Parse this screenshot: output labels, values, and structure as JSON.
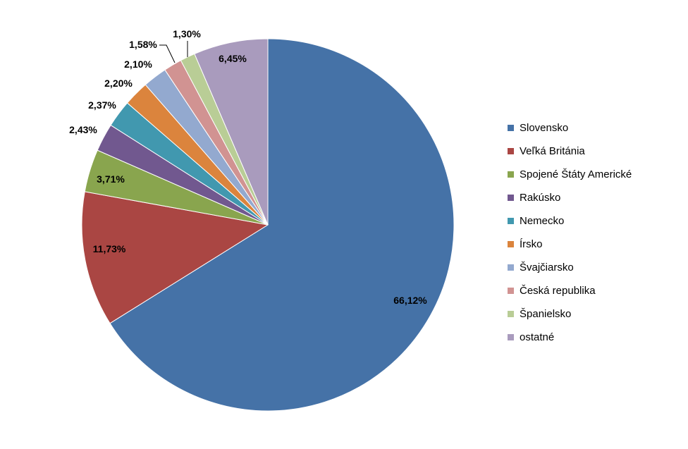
{
  "chart_data": {
    "type": "pie",
    "title": "",
    "legend_position": "right",
    "slices": [
      {
        "label": "Slovensko",
        "value": 66.12,
        "value_label": "66,12%",
        "color": "#4572A7"
      },
      {
        "label": "Veľká Británia",
        "value": 11.73,
        "value_label": "11,73%",
        "color": "#AA4643"
      },
      {
        "label": "Spojené Štáty Americké",
        "value": 3.71,
        "value_label": "3,71%",
        "color": "#89A54E"
      },
      {
        "label": "Rakúsko",
        "value": 2.43,
        "value_label": "2,43%",
        "color": "#71588F"
      },
      {
        "label": "Nemecko",
        "value": 2.37,
        "value_label": "2,37%",
        "color": "#4198AF"
      },
      {
        "label": "Írsko",
        "value": 2.2,
        "value_label": "2,20%",
        "color": "#DB843D"
      },
      {
        "label": "Švajčiarsko",
        "value": 2.1,
        "value_label": "2,10%",
        "color": "#93A9CF"
      },
      {
        "label": "Česká republika",
        "value": 1.58,
        "value_label": "1,58%",
        "color": "#D19392"
      },
      {
        "label": "Španielsko",
        "value": 1.3,
        "value_label": "1,30%",
        "color": "#B9CD96"
      },
      {
        "label": "ostatné",
        "value": 6.45,
        "value_label": "6,45%",
        "color": "#A99BBD"
      }
    ]
  }
}
